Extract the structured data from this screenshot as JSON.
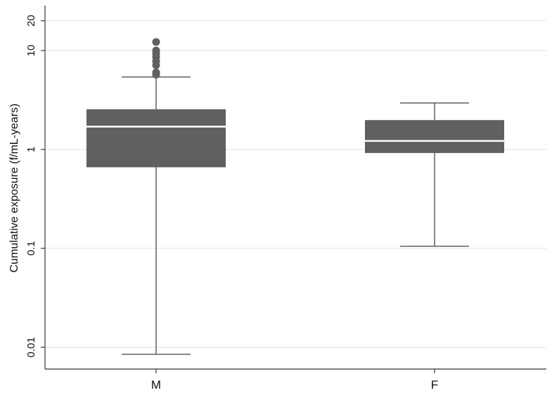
{
  "chart_data": {
    "type": "box",
    "title": "",
    "xlabel": "",
    "ylabel": "Cumulative exposure (f/mL-years)",
    "yscale": "log",
    "ylim": [
      0.0065,
      28
    ],
    "yticks": [
      {
        "value": 0.01,
        "label": "0.01"
      },
      {
        "value": 0.1,
        "label": "0.1"
      },
      {
        "value": 1,
        "label": "1"
      },
      {
        "value": 10,
        "label": "10"
      },
      {
        "value": 20,
        "label": "20"
      }
    ],
    "grid": true,
    "legend": "none",
    "colors": {
      "box": "#606060",
      "median": "#ffffff",
      "whisker": "#606060",
      "outlier": "#606060",
      "grid": "#e6e6e6",
      "axis": "#333333"
    },
    "categories": [
      "M",
      "F"
    ],
    "boxes": [
      {
        "category": "M",
        "whisker_low": 0.0085,
        "q1": 0.66,
        "median": 1.7,
        "q3": 2.55,
        "whisker_high": 5.4,
        "outliers": [
          5.7,
          6.0,
          7.1,
          7.8,
          8.6,
          9.3,
          10.0,
          12.2
        ]
      },
      {
        "category": "F",
        "whisker_low": 0.105,
        "q1": 0.92,
        "median": 1.22,
        "q3": 1.98,
        "whisker_high": 2.95,
        "outliers": []
      }
    ]
  }
}
